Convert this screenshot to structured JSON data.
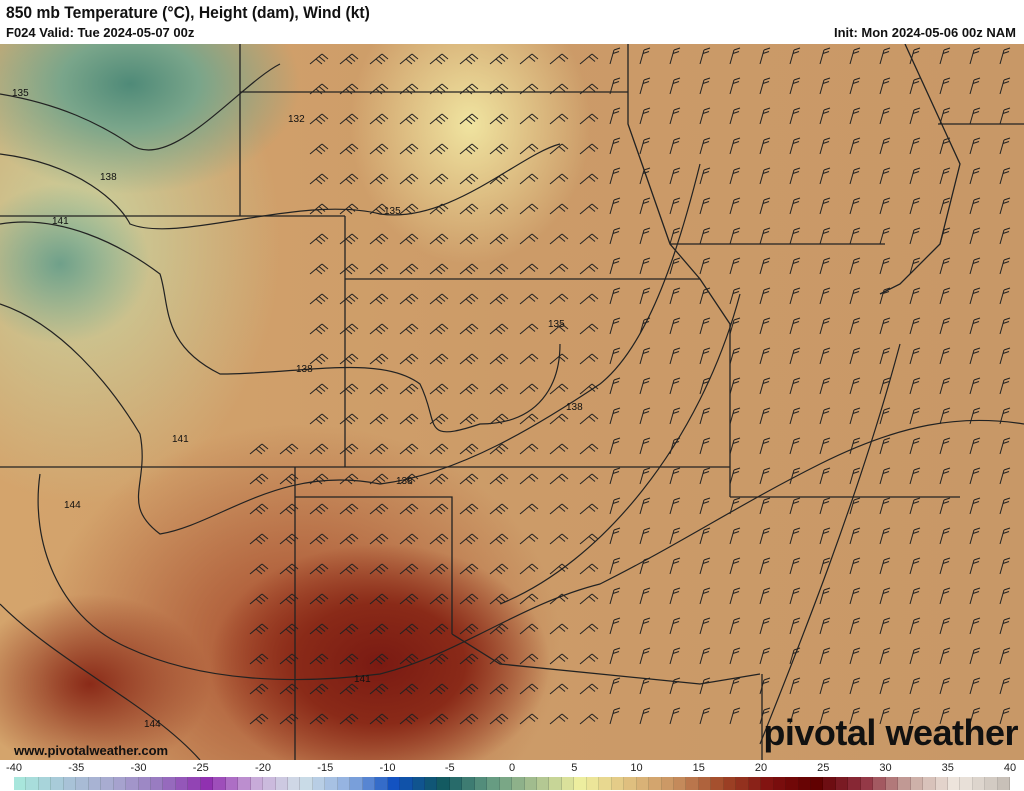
{
  "header": {
    "title": "850 mb Temperature (°C), Height (dam), Wind (kt)",
    "valid": "F024 Valid: Tue 2024-05-07 00z",
    "init": "Init: Mon 2024-05-06 00z NAM"
  },
  "footer": {
    "website": "www.pivotalweather.com",
    "logo": "pivotal weather"
  },
  "colorbar": {
    "unit": "°C",
    "min": -40,
    "max": 40,
    "ticks": [
      "-40",
      "-35",
      "-30",
      "-25",
      "-20",
      "-15",
      "-10",
      "-5",
      "0",
      "5",
      "10",
      "15",
      "20",
      "25",
      "30",
      "35",
      "40"
    ],
    "color_stops": [
      "#a8e6dc",
      "#a8c4d8",
      "#a8a8d0",
      "#9878c0",
      "#9030b0",
      "#c8a8d8",
      "#d0e0e8",
      "#90b0e0",
      "#1050c0",
      "#105860",
      "#609880",
      "#a8c090",
      "#f0f0a0",
      "#e0c080",
      "#c89060",
      "#a04828",
      "#801010",
      "#600000",
      "#903040",
      "#c8a8a0",
      "#f0e8e0",
      "#c8c0b8"
    ]
  },
  "contours": {
    "labels": [
      "135",
      "132",
      "138",
      "141",
      "135",
      "138",
      "141",
      "144",
      "135",
      "138",
      "138",
      "141",
      "144"
    ]
  },
  "colors": {
    "contour": "#222222",
    "border": "#222222",
    "county": "#7a5a40"
  }
}
